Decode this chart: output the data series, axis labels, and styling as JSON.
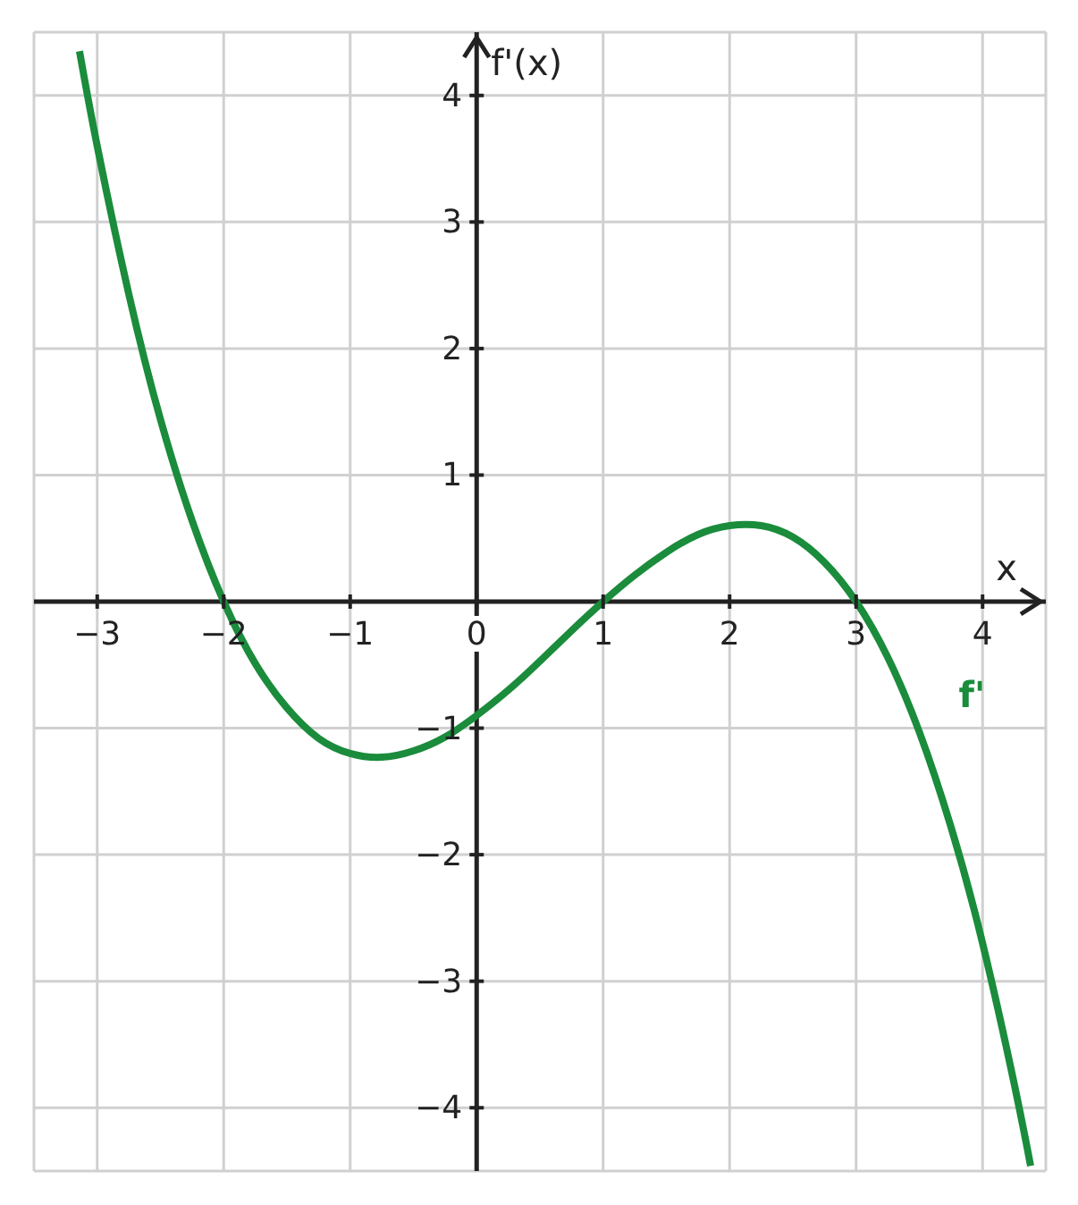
{
  "chart_data": {
    "type": "line",
    "xlabel": "x",
    "ylabel": "f'(x)",
    "x": [
      -3.14,
      -3,
      -2.75,
      -2.5,
      -2.25,
      -2,
      -1.75,
      -1.5,
      -1.25,
      -1,
      -0.75,
      -0.5,
      -0.25,
      0,
      0.25,
      0.5,
      0.75,
      1,
      1.25,
      1.5,
      1.75,
      2,
      2.25,
      2.5,
      2.75,
      3,
      3.25,
      3.5,
      3.75,
      4,
      4.25,
      4.38
    ],
    "series": [
      {
        "name": "f'",
        "color": "#1a8c3c",
        "values": [
          4.35,
          3.6,
          2.43,
          1.44,
          0.64,
          0,
          -0.49,
          -0.84,
          -1.08,
          -1.2,
          -1.23,
          -1.18,
          -1.07,
          -0.9,
          -0.7,
          -0.47,
          -0.23,
          0,
          0.21,
          0.39,
          0.53,
          0.6,
          0.6,
          0.51,
          0.31,
          0,
          -0.44,
          -1.03,
          -1.78,
          -2.7,
          -3.81,
          -4.46
        ]
      }
    ],
    "xlim": [
      -3.5,
      4.5
    ],
    "ylim": [
      -4.5,
      4.5
    ],
    "xticks": [
      -3,
      -2,
      -1,
      0,
      1,
      2,
      3,
      4
    ],
    "yticks": [
      -4,
      -3,
      -2,
      -1,
      {
        "value": 0,
        "label": null
      },
      1,
      2,
      3,
      4
    ],
    "grid": true,
    "marker": "none",
    "line_style": "solid"
  }
}
